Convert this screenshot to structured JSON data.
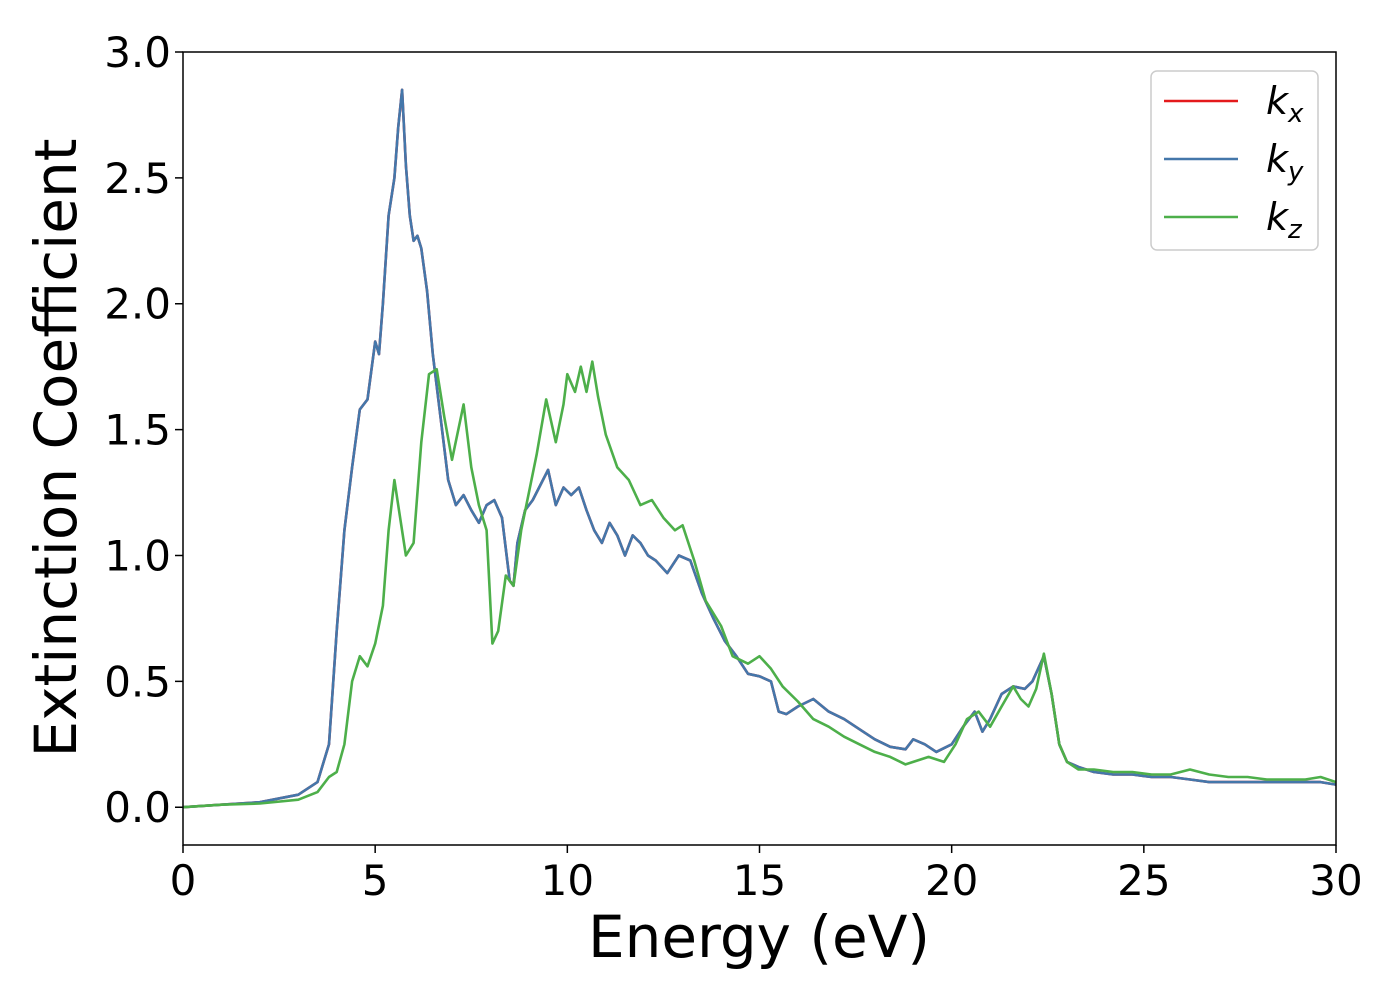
{
  "chart_data": {
    "type": "line",
    "xlabel": "Energy (eV)",
    "ylabel": "Extinction Coefficient",
    "xlim": [
      0,
      30
    ],
    "ylim": [
      -0.15,
      3.0
    ],
    "xticks": [
      0,
      5,
      10,
      15,
      20,
      25,
      30
    ],
    "xtick_labels": [
      "0",
      "5",
      "10",
      "15",
      "20",
      "25",
      "30"
    ],
    "yticks": [
      0.0,
      0.5,
      1.0,
      1.5,
      2.0,
      2.5,
      3.0
    ],
    "ytick_labels": [
      "0.0",
      "0.5",
      "1.0",
      "1.5",
      "2.0",
      "2.5",
      "3.0"
    ],
    "grid": false,
    "legend_position": "top-right",
    "series": [
      {
        "name": "k_x",
        "base": "k",
        "sub": "x",
        "color": "#e41a1c",
        "x": [
          0,
          1,
          2,
          3,
          3.5,
          3.8,
          4.0,
          4.2,
          4.4,
          4.6,
          4.8,
          5.0,
          5.1,
          5.2,
          5.35,
          5.5,
          5.6,
          5.7,
          5.8,
          5.9,
          6.0,
          6.1,
          6.2,
          6.35,
          6.5,
          6.7,
          6.9,
          7.1,
          7.3,
          7.5,
          7.7,
          7.9,
          8.1,
          8.3,
          8.5,
          8.6,
          8.7,
          8.9,
          9.1,
          9.3,
          9.5,
          9.7,
          9.9,
          10.1,
          10.3,
          10.5,
          10.7,
          10.9,
          11.1,
          11.3,
          11.5,
          11.7,
          11.9,
          12.1,
          12.3,
          12.6,
          12.9,
          13.2,
          13.5,
          13.8,
          14.1,
          14.4,
          14.7,
          15.0,
          15.3,
          15.5,
          15.7,
          16.0,
          16.4,
          16.8,
          17.2,
          17.6,
          18.0,
          18.4,
          18.8,
          19.0,
          19.3,
          19.6,
          20.0,
          20.3,
          20.6,
          20.8,
          21.0,
          21.3,
          21.6,
          21.9,
          22.1,
          22.4,
          22.6,
          22.8,
          23.0,
          23.3,
          23.7,
          24.2,
          24.7,
          25.2,
          25.7,
          26.2,
          26.7,
          27.2,
          27.7,
          28.2,
          28.7,
          29.2,
          29.6,
          30.0
        ],
        "values": [
          0.0,
          0.01,
          0.02,
          0.05,
          0.1,
          0.25,
          0.7,
          1.1,
          1.35,
          1.58,
          1.62,
          1.85,
          1.8,
          2.0,
          2.35,
          2.5,
          2.7,
          2.85,
          2.55,
          2.35,
          2.25,
          2.27,
          2.22,
          2.05,
          1.8,
          1.55,
          1.3,
          1.2,
          1.24,
          1.18,
          1.13,
          1.2,
          1.22,
          1.15,
          0.9,
          0.88,
          1.05,
          1.18,
          1.22,
          1.28,
          1.34,
          1.2,
          1.27,
          1.24,
          1.27,
          1.18,
          1.1,
          1.05,
          1.13,
          1.08,
          1.0,
          1.08,
          1.05,
          1.0,
          0.98,
          0.93,
          1.0,
          0.98,
          0.85,
          0.75,
          0.66,
          0.6,
          0.53,
          0.52,
          0.5,
          0.38,
          0.37,
          0.4,
          0.43,
          0.38,
          0.35,
          0.31,
          0.27,
          0.24,
          0.23,
          0.27,
          0.25,
          0.22,
          0.25,
          0.32,
          0.38,
          0.3,
          0.35,
          0.45,
          0.48,
          0.47,
          0.5,
          0.6,
          0.45,
          0.25,
          0.18,
          0.16,
          0.14,
          0.13,
          0.13,
          0.12,
          0.12,
          0.11,
          0.1,
          0.1,
          0.1,
          0.1,
          0.1,
          0.1,
          0.1,
          0.09
        ]
      },
      {
        "name": "k_y",
        "base": "k",
        "sub": "y",
        "color": "#4477aa",
        "x": [
          0,
          1,
          2,
          3,
          3.5,
          3.8,
          4.0,
          4.2,
          4.4,
          4.6,
          4.8,
          5.0,
          5.1,
          5.2,
          5.35,
          5.5,
          5.6,
          5.7,
          5.8,
          5.9,
          6.0,
          6.1,
          6.2,
          6.35,
          6.5,
          6.7,
          6.9,
          7.1,
          7.3,
          7.5,
          7.7,
          7.9,
          8.1,
          8.3,
          8.5,
          8.6,
          8.7,
          8.9,
          9.1,
          9.3,
          9.5,
          9.7,
          9.9,
          10.1,
          10.3,
          10.5,
          10.7,
          10.9,
          11.1,
          11.3,
          11.5,
          11.7,
          11.9,
          12.1,
          12.3,
          12.6,
          12.9,
          13.2,
          13.5,
          13.8,
          14.1,
          14.4,
          14.7,
          15.0,
          15.3,
          15.5,
          15.7,
          16.0,
          16.4,
          16.8,
          17.2,
          17.6,
          18.0,
          18.4,
          18.8,
          19.0,
          19.3,
          19.6,
          20.0,
          20.3,
          20.6,
          20.8,
          21.0,
          21.3,
          21.6,
          21.9,
          22.1,
          22.4,
          22.6,
          22.8,
          23.0,
          23.3,
          23.7,
          24.2,
          24.7,
          25.2,
          25.7,
          26.2,
          26.7,
          27.2,
          27.7,
          28.2,
          28.7,
          29.2,
          29.6,
          30.0
        ],
        "values": [
          0.0,
          0.01,
          0.02,
          0.05,
          0.1,
          0.25,
          0.7,
          1.1,
          1.35,
          1.58,
          1.62,
          1.85,
          1.8,
          2.0,
          2.35,
          2.5,
          2.7,
          2.85,
          2.55,
          2.35,
          2.25,
          2.27,
          2.22,
          2.05,
          1.8,
          1.55,
          1.3,
          1.2,
          1.24,
          1.18,
          1.13,
          1.2,
          1.22,
          1.15,
          0.9,
          0.88,
          1.05,
          1.18,
          1.22,
          1.28,
          1.34,
          1.2,
          1.27,
          1.24,
          1.27,
          1.18,
          1.1,
          1.05,
          1.13,
          1.08,
          1.0,
          1.08,
          1.05,
          1.0,
          0.98,
          0.93,
          1.0,
          0.98,
          0.85,
          0.75,
          0.66,
          0.6,
          0.53,
          0.52,
          0.5,
          0.38,
          0.37,
          0.4,
          0.43,
          0.38,
          0.35,
          0.31,
          0.27,
          0.24,
          0.23,
          0.27,
          0.25,
          0.22,
          0.25,
          0.32,
          0.38,
          0.3,
          0.35,
          0.45,
          0.48,
          0.47,
          0.5,
          0.6,
          0.45,
          0.25,
          0.18,
          0.16,
          0.14,
          0.13,
          0.13,
          0.12,
          0.12,
          0.11,
          0.1,
          0.1,
          0.1,
          0.1,
          0.1,
          0.1,
          0.1,
          0.09
        ]
      },
      {
        "name": "k_z",
        "base": "k",
        "sub": "z",
        "color": "#4daf4a",
        "x": [
          0,
          1,
          2,
          3,
          3.5,
          3.8,
          4.0,
          4.2,
          4.4,
          4.6,
          4.8,
          5.0,
          5.2,
          5.35,
          5.5,
          5.6,
          5.8,
          6.0,
          6.2,
          6.4,
          6.6,
          6.8,
          7.0,
          7.3,
          7.5,
          7.7,
          7.9,
          8.05,
          8.2,
          8.4,
          8.6,
          8.8,
          9.0,
          9.2,
          9.45,
          9.7,
          9.9,
          10.0,
          10.2,
          10.35,
          10.5,
          10.65,
          10.8,
          11.0,
          11.3,
          11.6,
          11.9,
          12.2,
          12.5,
          12.8,
          13.0,
          13.3,
          13.6,
          14.0,
          14.3,
          14.7,
          15.0,
          15.3,
          15.6,
          16.0,
          16.4,
          16.8,
          17.2,
          17.6,
          18.0,
          18.4,
          18.8,
          19.0,
          19.4,
          19.8,
          20.1,
          20.4,
          20.7,
          21.0,
          21.3,
          21.6,
          21.8,
          22.0,
          22.2,
          22.4,
          22.6,
          22.8,
          23.0,
          23.3,
          23.7,
          24.2,
          24.7,
          25.2,
          25.7,
          26.2,
          26.7,
          27.2,
          27.7,
          28.2,
          28.7,
          29.2,
          29.6,
          30.0
        ],
        "values": [
          0.0,
          0.01,
          0.015,
          0.03,
          0.06,
          0.12,
          0.14,
          0.25,
          0.5,
          0.6,
          0.56,
          0.65,
          0.8,
          1.1,
          1.3,
          1.2,
          1.0,
          1.05,
          1.45,
          1.72,
          1.74,
          1.55,
          1.38,
          1.6,
          1.35,
          1.2,
          1.1,
          0.65,
          0.7,
          0.92,
          0.88,
          1.1,
          1.25,
          1.4,
          1.62,
          1.45,
          1.6,
          1.72,
          1.65,
          1.75,
          1.65,
          1.77,
          1.63,
          1.48,
          1.35,
          1.3,
          1.2,
          1.22,
          1.15,
          1.1,
          1.12,
          0.98,
          0.82,
          0.72,
          0.6,
          0.57,
          0.6,
          0.55,
          0.48,
          0.42,
          0.35,
          0.32,
          0.28,
          0.25,
          0.22,
          0.2,
          0.17,
          0.18,
          0.2,
          0.18,
          0.25,
          0.35,
          0.38,
          0.32,
          0.4,
          0.48,
          0.43,
          0.4,
          0.47,
          0.61,
          0.45,
          0.25,
          0.18,
          0.15,
          0.15,
          0.14,
          0.14,
          0.13,
          0.13,
          0.15,
          0.13,
          0.12,
          0.12,
          0.11,
          0.11,
          0.11,
          0.12,
          0.1
        ]
      }
    ]
  }
}
